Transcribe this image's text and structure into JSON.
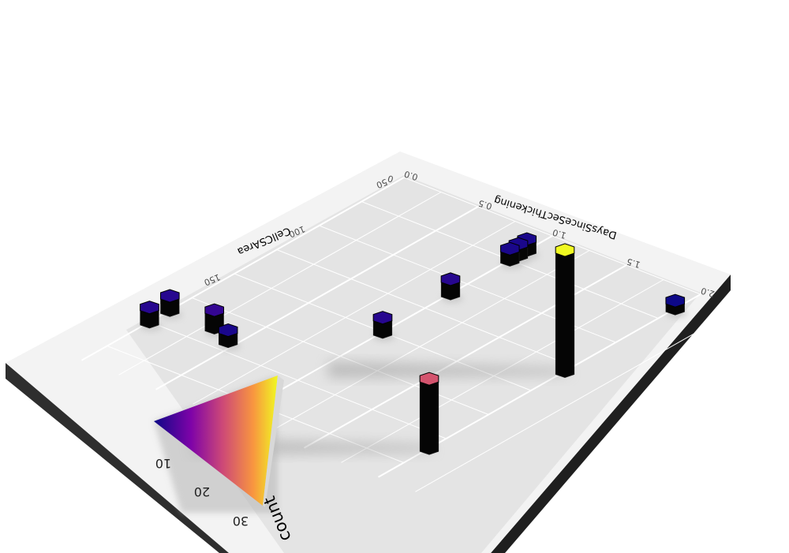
{
  "chart_data": {
    "type": "hexbin-3d",
    "xlabel": "DaysSinceSecThickening",
    "ylabel": "CellCSArea",
    "x_ticks": [
      "0.0",
      "0.5",
      "1.0",
      "1.5",
      "2.0"
    ],
    "x_extra_tick": "0",
    "y_ticks": [
      "50",
      "100",
      "150"
    ],
    "legend": {
      "title": "count",
      "ticks": [
        "10",
        "20",
        "30"
      ],
      "range": [
        1,
        36
      ],
      "colors": [
        "#0d0887",
        "#7e03a8",
        "#cc4778",
        "#f89540",
        "#f0f921"
      ]
    },
    "bins": [
      {
        "x": 0.0,
        "y": 190,
        "count": 3
      },
      {
        "x": 0.0,
        "y": 178,
        "count": 3
      },
      {
        "x": 0.3,
        "y": 178,
        "count": 4
      },
      {
        "x": 0.45,
        "y": 183,
        "count": 2
      },
      {
        "x": 1.0,
        "y": 140,
        "count": 3
      },
      {
        "x": 1.0,
        "y": 100,
        "count": 3
      },
      {
        "x": 1.0,
        "y": 65,
        "count": 2
      },
      {
        "x": 1.0,
        "y": 60,
        "count": 2
      },
      {
        "x": 1.0,
        "y": 55,
        "count": 2
      },
      {
        "x": 2.0,
        "y": 120,
        "count": 36
      },
      {
        "x": 2.0,
        "y": 200,
        "count": 20
      },
      {
        "x": 2.0,
        "y": 55,
        "count": 1
      }
    ]
  },
  "colors": {
    "panel": "#e9e9e9",
    "outer": "#f4f4f4",
    "grid": "#ffffff",
    "base": "#333333"
  }
}
